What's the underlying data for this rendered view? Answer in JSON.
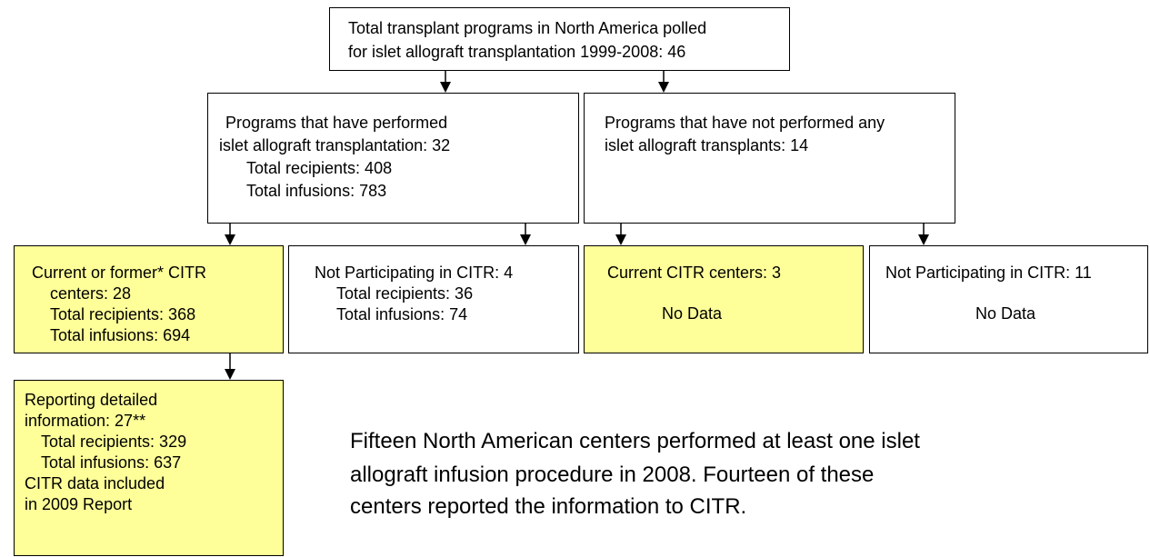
{
  "nodes": [
    {
      "lines": [
        "Total transplant programs in North America polled",
        "for islet allograft transplantation 1999-2008: 46"
      ]
    },
    {
      "lines": [
        "Programs that have performed",
        "islet allograft transplantation: 32",
        "Total recipients: 408",
        "Total infusions: 783"
      ]
    },
    {
      "lines": [
        "Programs that have not performed any",
        "islet allograft transplants: 14"
      ]
    },
    {
      "lines": [
        "Current or former* CITR",
        "centers: 28",
        "Total recipients: 368",
        "Total infusions: 694"
      ]
    },
    {
      "lines": [
        "Not Participating in CITR: 4",
        "Total recipients: 36",
        "Total infusions: 74"
      ]
    },
    {
      "lines": [
        "Current CITR centers: 3",
        "No Data"
      ]
    },
    {
      "lines": [
        "Not Participating in CITR: 11",
        "No Data"
      ]
    },
    {
      "lines": [
        "Reporting detailed",
        "information: 27**",
        "Total recipients: 329",
        "Total infusions: 637",
        "CITR data included",
        "in 2009 Report"
      ]
    }
  ],
  "note": {
    "lines": [
      "Fifteen North American centers performed at least one islet",
      "allograft infusion procedure in 2008.  Fourteen of these",
      "centers reported the information to CITR."
    ]
  }
}
